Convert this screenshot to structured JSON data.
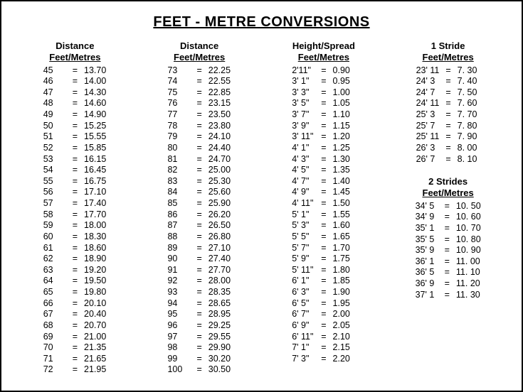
{
  "title": "FEET - METRE CONVERSIONS",
  "colors": {
    "text": "#000000",
    "background": "#ffffff"
  },
  "font": {
    "family": "Arial",
    "title_size": 20,
    "header_size": 13,
    "body_size": 12.5
  },
  "columns": [
    {
      "header_top": "Distance",
      "header_sub": "Feet/Metres",
      "rows": [
        [
          "45",
          "=",
          "13.70"
        ],
        [
          "46",
          "=",
          "14.00"
        ],
        [
          "47",
          "=",
          "14.30"
        ],
        [
          "48",
          "=",
          "14.60"
        ],
        [
          "49",
          "=",
          "14.90"
        ],
        [
          "50",
          "=",
          "15.25"
        ],
        [
          "51",
          "=",
          "15.55"
        ],
        [
          "52",
          "=",
          "15.85"
        ],
        [
          "53",
          "=",
          "16.15"
        ],
        [
          "54",
          "=",
          "16.45"
        ],
        [
          "55",
          "=",
          "16.75"
        ],
        [
          "56",
          "=",
          "17.10"
        ],
        [
          "57",
          "=",
          "17.40"
        ],
        [
          "58",
          "=",
          "17.70"
        ],
        [
          "59",
          "=",
          "18.00"
        ],
        [
          "60",
          "=",
          "18.30"
        ],
        [
          "61",
          "=",
          "18.60"
        ],
        [
          "62",
          "=",
          "18.90"
        ],
        [
          "63",
          "=",
          "19.20"
        ],
        [
          "64",
          "=",
          "19.50"
        ],
        [
          "65",
          "=",
          "19.80"
        ],
        [
          "66",
          "=",
          "20.10"
        ],
        [
          "67",
          "=",
          "20.40"
        ],
        [
          "68",
          "=",
          "20.70"
        ],
        [
          "69",
          "=",
          "21.00"
        ],
        [
          "70",
          "=",
          "21.35"
        ],
        [
          "71",
          "=",
          "21.65"
        ],
        [
          "72",
          "=",
          "21.95"
        ]
      ]
    },
    {
      "header_top": "Distance",
      "header_sub": "Feet/Metres",
      "rows": [
        [
          "73",
          "=",
          "22.25"
        ],
        [
          "74",
          "=",
          "22.55"
        ],
        [
          "75",
          "=",
          "22.85"
        ],
        [
          "76",
          "=",
          "23.15"
        ],
        [
          "77",
          "=",
          "23.50"
        ],
        [
          "78",
          "=",
          "23.80"
        ],
        [
          "79",
          "=",
          "24.10"
        ],
        [
          "80",
          "=",
          "24.40"
        ],
        [
          "81",
          "=",
          "24.70"
        ],
        [
          "82",
          "=",
          "25.00"
        ],
        [
          "83",
          "=",
          "25.30"
        ],
        [
          "84",
          "=",
          "25.60"
        ],
        [
          "85",
          "=",
          "25.90"
        ],
        [
          "86",
          "=",
          "26.20"
        ],
        [
          "87",
          "=",
          "26.50"
        ],
        [
          "88",
          "=",
          "26.80"
        ],
        [
          "89",
          "=",
          "27.10"
        ],
        [
          "90",
          "=",
          "27.40"
        ],
        [
          "91",
          "=",
          "27.70"
        ],
        [
          "92",
          "=",
          "28.00"
        ],
        [
          "93",
          "=",
          "28.35"
        ],
        [
          "94",
          "=",
          "28.65"
        ],
        [
          "95",
          "=",
          "28.95"
        ],
        [
          "96",
          "=",
          "29.25"
        ],
        [
          "97",
          "=",
          "29.55"
        ],
        [
          "98",
          "=",
          "29.90"
        ],
        [
          "99",
          "=",
          "30.20"
        ],
        [
          "100",
          "=",
          "30.50"
        ]
      ]
    },
    {
      "header_top": "Height/Spread",
      "header_sub": "Feet/Metres",
      "rows": [
        [
          "2'11\"",
          "=",
          "0.90"
        ],
        [
          "3' 1\"",
          "=",
          "0.95"
        ],
        [
          "3' 3\"",
          "=",
          "1.00"
        ],
        [
          "3' 5\"",
          "=",
          "1.05"
        ],
        [
          "3' 7\"",
          "=",
          "1.10"
        ],
        [
          "3' 9\"",
          "=",
          "1.15"
        ],
        [
          "3' 11\"",
          "=",
          "1.20"
        ],
        [
          "4' 1\"",
          "=",
          "1.25"
        ],
        [
          "4' 3\"",
          "=",
          "1.30"
        ],
        [
          "4' 5\"",
          "=",
          "1.35"
        ],
        [
          "4' 7\"",
          "=",
          "1.40"
        ],
        [
          "4' 9\"",
          "=",
          "1.45"
        ],
        [
          "4' 11\"",
          "=",
          "1.50"
        ],
        [
          "5' 1\"",
          "=",
          "1.55"
        ],
        [
          "5' 3\"",
          "=",
          "1.60"
        ],
        [
          "5' 5\"",
          "=",
          "1.65"
        ],
        [
          "5' 7\"",
          "=",
          "1.70"
        ],
        [
          "5' 9\"",
          "=",
          "1.75"
        ],
        [
          "5' 11\"",
          "=",
          "1.80"
        ],
        [
          "6' 1\"",
          "=",
          "1.85"
        ],
        [
          "6' 3\"",
          "=",
          "1.90"
        ],
        [
          "6' 5\"",
          "=",
          "1.95"
        ],
        [
          "6' 7\"",
          "=",
          "2.00"
        ],
        [
          "6' 9\"",
          "=",
          "2.05"
        ],
        [
          "6' 11\"",
          "=",
          "2.10"
        ],
        [
          "7' 1\"",
          "=",
          "2.15"
        ],
        [
          "7' 3\"",
          "=",
          "2.20"
        ]
      ]
    },
    {
      "sections": [
        {
          "header_top": "1 Stride",
          "header_sub": "Feet/Metres",
          "rows": [
            [
              "23' 11",
              "=",
              "7. 30"
            ],
            [
              "24' 3",
              "=",
              "7. 40"
            ],
            [
              "24' 7",
              "=",
              "7. 50"
            ],
            [
              "24' 11",
              "=",
              "7. 60"
            ],
            [
              "25' 3",
              "=",
              "7. 70"
            ],
            [
              "25' 7",
              "=",
              "7. 80"
            ],
            [
              "25' 11",
              "=",
              "7. 90"
            ],
            [
              "26' 3",
              "=",
              "8. 00"
            ],
            [
              "26' 7",
              "=",
              "8. 10"
            ]
          ]
        },
        {
          "header_top": "2 Strides",
          "header_sub": "Feet/Metres",
          "rows": [
            [
              "34' 5",
              "=",
              "10. 50"
            ],
            [
              "34' 9",
              "=",
              "10. 60"
            ],
            [
              "35' 1",
              "=",
              "10. 70"
            ],
            [
              "35' 5",
              "=",
              "10. 80"
            ],
            [
              "35' 9",
              "=",
              "10. 90"
            ],
            [
              "36' 1",
              "=",
              "11. 00"
            ],
            [
              "36' 5",
              "=",
              "11. 10"
            ],
            [
              "36' 9",
              "=",
              "11. 20"
            ],
            [
              "37' 1",
              "=",
              "11. 30"
            ]
          ]
        }
      ]
    }
  ]
}
